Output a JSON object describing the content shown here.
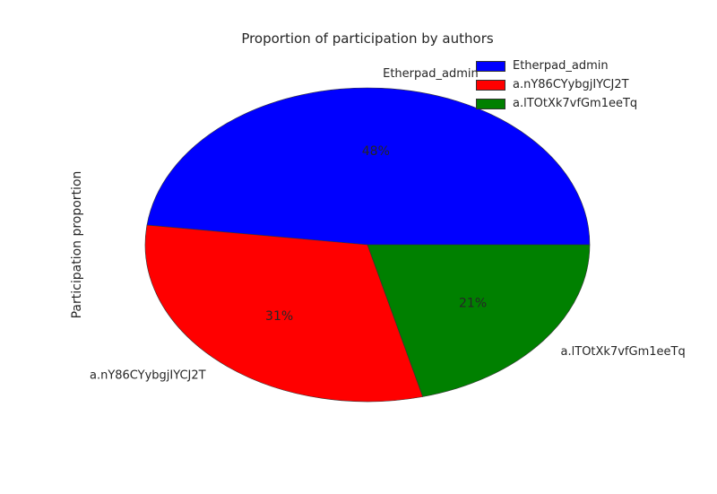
{
  "chart_data": {
    "type": "pie",
    "title": "Proportion of participation by authors",
    "ylabel": "Participation proportion",
    "slices": [
      {
        "label": "Etherpad_admin",
        "value": 48,
        "pct_label": "48%",
        "color": "#0000ff"
      },
      {
        "label": "a.nY86CYybgjIYCJ2T",
        "value": 31,
        "pct_label": "31%",
        "color": "#ff0000"
      },
      {
        "label": "a.lTOtXk7vfGm1eeTq",
        "value": 21,
        "pct_label": "21%",
        "color": "#008000"
      }
    ],
    "legend": {
      "placement": "top-right",
      "entries": [
        "Etherpad_admin",
        "a.nY86CYybgjIYCJ2T",
        "a.lTOtXk7vfGm1eeTq"
      ]
    }
  }
}
